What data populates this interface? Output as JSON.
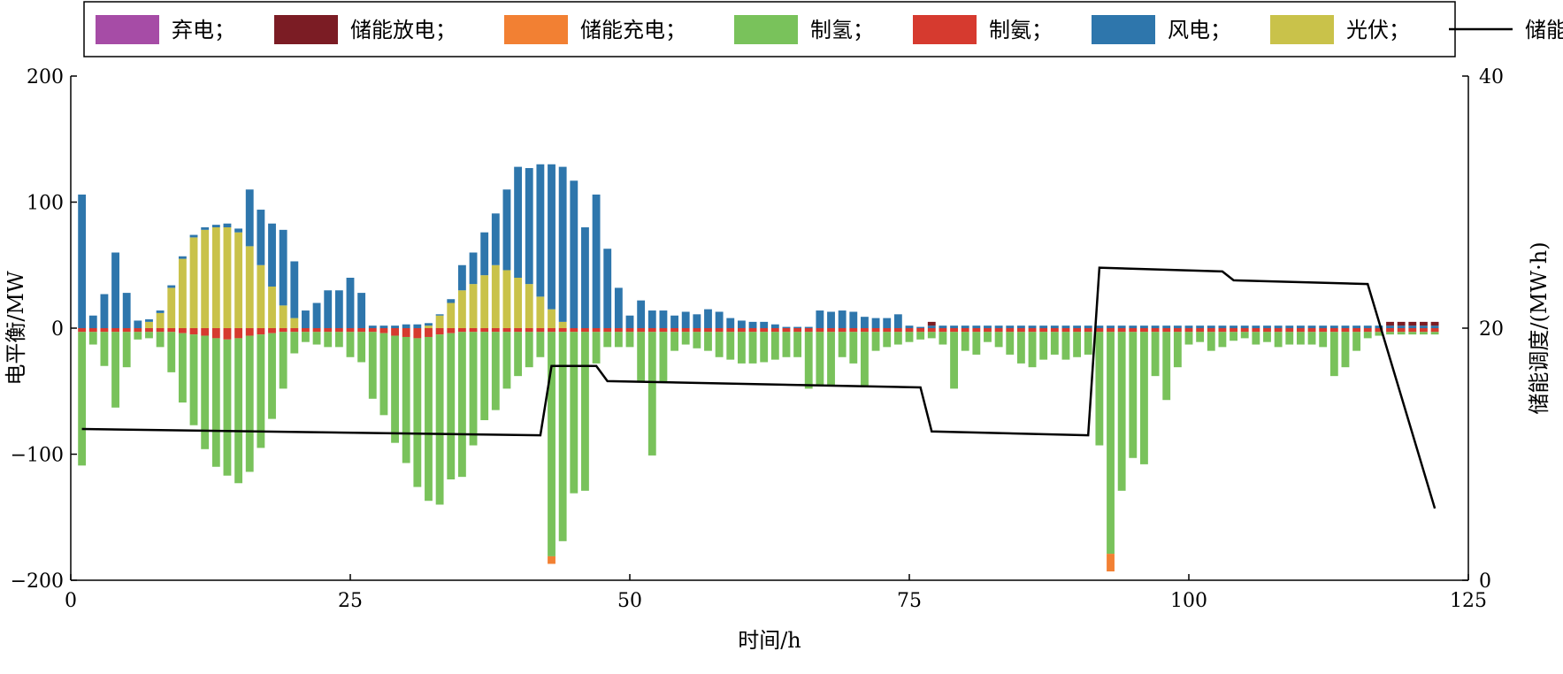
{
  "chart_data": {
    "type": "bar",
    "title": "",
    "xlabel": "时间/h",
    "ylabel": "电平衡/MW",
    "y2label": "储能调度/(MW·h)",
    "xlim": [
      0,
      125
    ],
    "ylim": [
      -200,
      200
    ],
    "y2lim": [
      0,
      40
    ],
    "x_ticks": [
      0,
      25,
      50,
      75,
      100,
      125
    ],
    "y_ticks": [
      -200,
      -100,
      0,
      100,
      200
    ],
    "y2_ticks": [
      0,
      20,
      40
    ],
    "grid": false,
    "legend_position": "top",
    "legend": [
      {
        "label": "弃电；",
        "color": "#a64ca6",
        "kind": "bar"
      },
      {
        "label": "储能放电；",
        "color": "#7b1c24",
        "kind": "bar"
      },
      {
        "label": "储能充电；",
        "color": "#f28033",
        "kind": "bar"
      },
      {
        "label": "制氢；",
        "color": "#79c25b",
        "kind": "bar"
      },
      {
        "label": "制氨；",
        "color": "#d63a2f",
        "kind": "bar"
      },
      {
        "label": "风电；",
        "color": "#2e76ac",
        "kind": "bar"
      },
      {
        "label": "光伏；",
        "color": "#c9c24a",
        "kind": "bar"
      },
      {
        "label": "储能调度",
        "color": "#000000",
        "kind": "line"
      }
    ],
    "bar_series": {
      "x": [
        1,
        2,
        3,
        4,
        5,
        6,
        7,
        8,
        9,
        10,
        11,
        12,
        13,
        14,
        15,
        16,
        17,
        18,
        19,
        20,
        21,
        22,
        23,
        24,
        25,
        26,
        27,
        28,
        29,
        30,
        31,
        32,
        33,
        34,
        35,
        36,
        37,
        38,
        39,
        40,
        41,
        42,
        43,
        44,
        45,
        46,
        47,
        48,
        49,
        50,
        51,
        52,
        53,
        54,
        55,
        56,
        57,
        58,
        59,
        60,
        61,
        62,
        63,
        64,
        65,
        66,
        67,
        68,
        69,
        70,
        71,
        72,
        73,
        74,
        75,
        76,
        77,
        78,
        79,
        80,
        81,
        82,
        83,
        84,
        85,
        86,
        87,
        88,
        89,
        90,
        91,
        92,
        93,
        94,
        95,
        96,
        97,
        98,
        99,
        100,
        101,
        102,
        103,
        104,
        105,
        106,
        107,
        108,
        109,
        110,
        111,
        112,
        113,
        114,
        115,
        116,
        117,
        118,
        119,
        120,
        121,
        122
      ],
      "wind": [
        106,
        10,
        27,
        60,
        28,
        6,
        2,
        2,
        2,
        2,
        2,
        2,
        2,
        3,
        3,
        45,
        44,
        50,
        60,
        45,
        14,
        20,
        30,
        30,
        40,
        28,
        2,
        2,
        2,
        3,
        3,
        2,
        1,
        3,
        20,
        25,
        34,
        41,
        64,
        88,
        92,
        105,
        115,
        123,
        117,
        80,
        106,
        63,
        32,
        10,
        22,
        14,
        14,
        10,
        13,
        11,
        15,
        13,
        8,
        6,
        5,
        5,
        3,
        1,
        1,
        1,
        14,
        13,
        14,
        13,
        9,
        8,
        8,
        11,
        2,
        1,
        2,
        2,
        2,
        2,
        2,
        2,
        2,
        2,
        2,
        2,
        2,
        2,
        2,
        2,
        2,
        2,
        2,
        2,
        2,
        2,
        2,
        2,
        2,
        2,
        2,
        2,
        2,
        2,
        2,
        2,
        2,
        2,
        2,
        2,
        2,
        2,
        2,
        2,
        2,
        2,
        2,
        2,
        2,
        2,
        2,
        2
      ],
      "solar": [
        0,
        0,
        0,
        0,
        0,
        0,
        5,
        12,
        32,
        55,
        72,
        78,
        80,
        80,
        76,
        65,
        50,
        33,
        18,
        8,
        0,
        0,
        0,
        0,
        0,
        0,
        0,
        0,
        0,
        0,
        0,
        2,
        10,
        20,
        30,
        35,
        42,
        50,
        46,
        40,
        35,
        25,
        15,
        5,
        0,
        0,
        0,
        0,
        0,
        0,
        0,
        0,
        0,
        0,
        0,
        0,
        0,
        0,
        0,
        0,
        0,
        0,
        0,
        0,
        0,
        0,
        0,
        0,
        0,
        0,
        0,
        0,
        0,
        0,
        0,
        0,
        0,
        0,
        0,
        0,
        0,
        0,
        0,
        0,
        0,
        0,
        0,
        0,
        0,
        0,
        0,
        0,
        0,
        0,
        0,
        0,
        0,
        0,
        0,
        0,
        0,
        0,
        0,
        0,
        0,
        0,
        0,
        0,
        0,
        0,
        0,
        0,
        0,
        0,
        0,
        0,
        0,
        0,
        0,
        0,
        0,
        0
      ],
      "hydrogen": [
        -106,
        -10,
        -27,
        -60,
        -28,
        -6,
        -5,
        -12,
        -32,
        -55,
        -72,
        -90,
        -102,
        -108,
        -115,
        -108,
        -90,
        -68,
        -45,
        -17,
        -8,
        -10,
        -12,
        -12,
        -20,
        -24,
        -53,
        -65,
        -85,
        -100,
        -118,
        -130,
        -135,
        -116,
        -115,
        -90,
        -70,
        -62,
        -45,
        -35,
        -28,
        -20,
        -178,
        -166,
        -128,
        -126,
        -25,
        -12,
        -12,
        -12,
        -40,
        -98,
        -40,
        -15,
        -10,
        -13,
        -15,
        -20,
        -22,
        -25,
        -25,
        -24,
        -22,
        -20,
        -20,
        -45,
        -42,
        -42,
        -20,
        -25,
        -44,
        -15,
        -12,
        -10,
        -8,
        -6,
        -5,
        -10,
        -45,
        -15,
        -18,
        -8,
        -12,
        -18,
        -25,
        -28,
        -22,
        -18,
        -22,
        -20,
        -18,
        -90,
        -176,
        -126,
        -100,
        -105,
        -35,
        -54,
        -28,
        -10,
        -8,
        -15,
        -12,
        -7,
        -5,
        -10,
        -8,
        -12,
        -10,
        -10,
        -10,
        -12,
        -35,
        -28,
        -15,
        -5,
        -3,
        -2,
        -2,
        -2,
        -2,
        -2
      ],
      "ammonia": [
        -3,
        -3,
        -3,
        -3,
        -3,
        -3,
        -3,
        -3,
        -3,
        -4,
        -5,
        -6,
        -8,
        -9,
        -8,
        -6,
        -5,
        -4,
        -3,
        -3,
        -3,
        -3,
        -3,
        -3,
        -3,
        -3,
        -3,
        -4,
        -6,
        -7,
        -8,
        -7,
        -5,
        -4,
        -3,
        -3,
        -3,
        -3,
        -3,
        -3,
        -3,
        -3,
        -3,
        -3,
        -3,
        -3,
        -3,
        -3,
        -3,
        -3,
        -3,
        -3,
        -3,
        -3,
        -3,
        -3,
        -3,
        -3,
        -3,
        -3,
        -3,
        -3,
        -3,
        -3,
        -3,
        -3,
        -3,
        -3,
        -3,
        -3,
        -3,
        -3,
        -3,
        -3,
        -3,
        -3,
        -3,
        -3,
        -3,
        -3,
        -3,
        -3,
        -3,
        -3,
        -3,
        -3,
        -3,
        -3,
        -3,
        -3,
        -3,
        -3,
        -3,
        -3,
        -3,
        -3,
        -3,
        -3,
        -3,
        -3,
        -3,
        -3,
        -3,
        -3,
        -3,
        -3,
        -3,
        -3,
        -3,
        -3,
        -3,
        -3,
        -3,
        -3,
        -3,
        -3,
        -3,
        -3,
        -3,
        -3,
        -3,
        -3
      ],
      "storage_charge": [
        0,
        0,
        0,
        0,
        0,
        0,
        0,
        0,
        0,
        0,
        0,
        0,
        0,
        0,
        0,
        0,
        0,
        0,
        0,
        0,
        0,
        0,
        0,
        0,
        0,
        0,
        0,
        0,
        0,
        0,
        0,
        0,
        0,
        0,
        0,
        0,
        0,
        0,
        0,
        0,
        0,
        0,
        -6,
        0,
        0,
        0,
        0,
        0,
        0,
        0,
        0,
        0,
        0,
        0,
        0,
        0,
        0,
        0,
        0,
        0,
        0,
        0,
        0,
        0,
        0,
        0,
        0,
        0,
        0,
        0,
        0,
        0,
        0,
        0,
        0,
        0,
        0,
        0,
        0,
        0,
        0,
        0,
        0,
        0,
        0,
        0,
        0,
        0,
        0,
        0,
        0,
        0,
        -14,
        0,
        0,
        0,
        0,
        0,
        0,
        0,
        0,
        0,
        0,
        0,
        0,
        0,
        0,
        0,
        0,
        0,
        0,
        0,
        0,
        0,
        0,
        0,
        0,
        0,
        0,
        0,
        0,
        0
      ],
      "storage_discharge": [
        0,
        0,
        0,
        0,
        0,
        0,
        0,
        0,
        0,
        0,
        0,
        0,
        0,
        0,
        0,
        0,
        0,
        0,
        0,
        0,
        0,
        0,
        0,
        0,
        0,
        0,
        0,
        0,
        0,
        0,
        0,
        0,
        0,
        0,
        0,
        0,
        0,
        0,
        0,
        0,
        0,
        0,
        0,
        0,
        0,
        0,
        0,
        0,
        0,
        0,
        0,
        0,
        0,
        0,
        0,
        0,
        0,
        0,
        0,
        0,
        0,
        0,
        0,
        0,
        0,
        0,
        0,
        0,
        0,
        0,
        0,
        0,
        0,
        0,
        0,
        0,
        3,
        0,
        0,
        0,
        0,
        0,
        0,
        0,
        0,
        0,
        0,
        0,
        0,
        0,
        0,
        0,
        0,
        0,
        0,
        0,
        0,
        0,
        0,
        0,
        0,
        0,
        0,
        0,
        0,
        0,
        0,
        0,
        0,
        0,
        0,
        0,
        0,
        0,
        0,
        0,
        0,
        3,
        3,
        3,
        3,
        3
      ],
      "curtail": [
        0,
        0,
        0,
        0,
        0,
        0,
        0,
        0,
        0,
        0,
        0,
        0,
        0,
        0,
        0,
        0,
        0,
        0,
        0,
        0,
        0,
        0,
        0,
        0,
        0,
        0,
        0,
        0,
        0,
        0,
        0,
        0,
        0,
        0,
        0,
        0,
        0,
        0,
        0,
        0,
        0,
        0,
        0,
        0,
        0,
        0,
        0,
        0,
        0,
        0,
        0,
        0,
        0,
        0,
        0,
        0,
        0,
        0,
        0,
        0,
        0,
        0,
        0,
        0,
        0,
        0,
        0,
        0,
        0,
        0,
        0,
        0,
        0,
        0,
        0,
        0,
        0,
        0,
        0,
        0,
        0,
        0,
        0,
        0,
        0,
        0,
        0,
        0,
        0,
        0,
        0,
        0,
        0,
        0,
        0,
        0,
        0,
        0,
        0,
        0,
        0,
        0,
        0,
        0,
        0,
        0,
        0,
        0,
        0,
        0,
        0,
        0,
        0,
        0,
        0,
        0,
        0,
        0,
        0,
        0,
        0,
        0
      ]
    },
    "storage_line": {
      "x": [
        1,
        42,
        43,
        47,
        48,
        76,
        77,
        91,
        92,
        103,
        104,
        116,
        122
      ],
      "y": [
        12,
        11.5,
        17,
        17,
        15.8,
        15.3,
        11.8,
        11.5,
        24.8,
        24.5,
        23.8,
        23.5,
        5.7
      ]
    }
  }
}
